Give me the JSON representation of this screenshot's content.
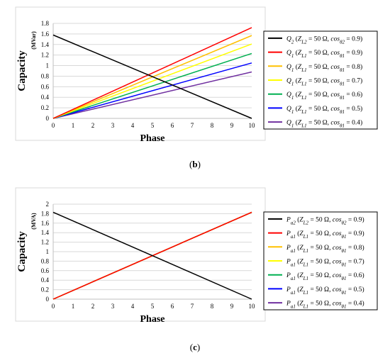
{
  "charts": [
    {
      "type": "line",
      "ylabel": "Capacity",
      "yunit": "(MVar)",
      "xlabel": "Phase",
      "xticks": [
        "0",
        "1",
        "2",
        "3",
        "4",
        "5",
        "6",
        "7",
        "8",
        "9",
        "10"
      ],
      "yticks": [
        "0",
        "0.2",
        "0.4",
        "0.6",
        "0.8",
        "1",
        "1.2",
        "1.4",
        "1.6",
        "1.8"
      ],
      "xlim": [
        0,
        10
      ],
      "ylim": [
        0,
        1.8
      ],
      "series": [
        {
          "name": "Q2 (ZL2 = 50 Ω, cosθ2 = 0.9)",
          "sym": "Q",
          "sub": "2",
          "zsub": "L2",
          "csub": "θ2",
          "val": "0.9",
          "color": "#000000",
          "values": [
            1.58,
            0
          ]
        },
        {
          "name": "Q1 (ZL1 = 50 Ω, cosθ1 = 0.9)",
          "sym": "Q",
          "sub": "1",
          "zsub": "L1",
          "csub": "θ1",
          "val": "0.9",
          "color": "#ff0000",
          "values": [
            0,
            1.72
          ]
        },
        {
          "name": "Q1 (ZL1 = 50 Ω, cosθ1 = 0.8)",
          "sym": "Q",
          "sub": "1",
          "zsub": "L1",
          "csub": "θ1",
          "val": "0.8",
          "color": "#ffc000",
          "values": [
            0,
            1.57
          ]
        },
        {
          "name": "Q1 (ZL1 = 50 Ω, cosθ1 = 0.7)",
          "sym": "Q",
          "sub": "1",
          "zsub": "L1",
          "csub": "θ1",
          "val": "0.7",
          "color": "#ffff00",
          "values": [
            0,
            1.41
          ]
        },
        {
          "name": "Q1 (ZL1 = 50 Ω, cosθ1 = 0.6)",
          "sym": "Q",
          "sub": "1",
          "zsub": "L1",
          "csub": "θ1",
          "val": "0.6",
          "color": "#00b050",
          "values": [
            0,
            1.23
          ]
        },
        {
          "name": "Q1 (ZL1 = 50 Ω, cosθ1 = 0.5)",
          "sym": "Q",
          "sub": "1",
          "zsub": "L1",
          "csub": "θ1",
          "val": "0.5",
          "color": "#0000ff",
          "values": [
            0,
            1.05
          ]
        },
        {
          "name": "Q1 (ZL1 = 50 Ω, cosθ1 = 0.4)",
          "sym": "Q",
          "sub": "1",
          "zsub": "L1",
          "csub": "θ1",
          "val": "0.4",
          "color": "#7030a0",
          "values": [
            0,
            0.88
          ]
        }
      ],
      "caption": "b"
    },
    {
      "type": "line",
      "ylabel": "Capacity",
      "yunit": "(MVA)",
      "xlabel": "Phase",
      "xticks": [
        "0",
        "1",
        "2",
        "3",
        "4",
        "5",
        "6",
        "7",
        "8",
        "9",
        "10"
      ],
      "yticks": [
        "0",
        "0.2",
        "0.4",
        "0.6",
        "0.8",
        "1",
        "1.2",
        "1.4",
        "1.6",
        "1.8",
        "2"
      ],
      "xlim": [
        0,
        10
      ],
      "ylim": [
        0,
        2
      ],
      "series": [
        {
          "name": "Pa2 (ZL2 = 50 Ω, cosθ2 = 0.9)",
          "sym": "P",
          "sub": "a2",
          "zsub": "L2",
          "csub": "θ2",
          "val": "0.9",
          "color": "#000000",
          "values": [
            1.83,
            0
          ]
        },
        {
          "name": "Pa1 (ZL1 = 50 Ω, cosθ1 = 0.9)",
          "sym": "P",
          "sub": "a1",
          "zsub": "L1",
          "csub": "θ1",
          "val": "0.9",
          "color": "#ff0000",
          "values": [
            0,
            1.83
          ]
        },
        {
          "name": "Pa1 (ZL1 = 50 Ω, cosθ1 = 0.8)",
          "sym": "P",
          "sub": "a1",
          "zsub": "L1",
          "csub": "θ1",
          "val": "0.8",
          "color": "#ffc000",
          "values": [
            0,
            1.83
          ]
        },
        {
          "name": "Pa1 (ZL1 = 50 Ω, cosθ1 = 0.7)",
          "sym": "P",
          "sub": "a1",
          "zsub": "L1",
          "csub": "θ1",
          "val": "0.7",
          "color": "#ffff00",
          "values": [
            0,
            1.83
          ]
        },
        {
          "name": "Pa1 (ZL1 = 50 Ω, cosθ1 = 0.6)",
          "sym": "P",
          "sub": "a1",
          "zsub": "L1",
          "csub": "θ1",
          "val": "0.6",
          "color": "#00b050",
          "values": [
            0,
            1.83
          ]
        },
        {
          "name": "Pa1 (ZL1 = 50 Ω, cosθ1 = 0.5)",
          "sym": "P",
          "sub": "a1",
          "zsub": "L1",
          "csub": "θ1",
          "val": "0.5",
          "color": "#0000ff",
          "values": [
            0,
            1.83
          ]
        },
        {
          "name": "Pa1 (ZL1 = 50 Ω, cosθ1 = 0.4)",
          "sym": "P",
          "sub": "a1",
          "zsub": "L1",
          "csub": "θ1",
          "val": "0.4",
          "color": "#7030a0",
          "values": [
            0,
            1.83
          ]
        }
      ],
      "caption": "c"
    }
  ],
  "chart_data": [
    {
      "type": "line",
      "xlabel": "Phase",
      "ylabel": "Capacity (MVar)",
      "xlim": [
        0,
        10
      ],
      "ylim": [
        0,
        1.8
      ],
      "grid": true,
      "legend": "right",
      "x": [
        0,
        10
      ],
      "series": [
        {
          "name": "Q2 (ZL2 = 50 Ω, cosθ2 = 0.9)",
          "values": [
            1.58,
            0
          ]
        },
        {
          "name": "Q1 (ZL1 = 50 Ω, cosθ1 = 0.9)",
          "values": [
            0,
            1.72
          ]
        },
        {
          "name": "Q1 (ZL1 = 50 Ω, cosθ1 = 0.8)",
          "values": [
            0,
            1.57
          ]
        },
        {
          "name": "Q1 (ZL1 = 50 Ω, cosθ1 = 0.7)",
          "values": [
            0,
            1.41
          ]
        },
        {
          "name": "Q1 (ZL1 = 50 Ω, cosθ1 = 0.6)",
          "values": [
            0,
            1.23
          ]
        },
        {
          "name": "Q1 (ZL1 = 50 Ω, cosθ1 = 0.5)",
          "values": [
            0,
            1.05
          ]
        },
        {
          "name": "Q1 (ZL1 = 50 Ω, cosθ1 = 0.4)",
          "values": [
            0,
            0.88
          ]
        }
      ]
    },
    {
      "type": "line",
      "xlabel": "Phase",
      "ylabel": "Capacity (MVA)",
      "xlim": [
        0,
        10
      ],
      "ylim": [
        0,
        2
      ],
      "grid": true,
      "legend": "right",
      "x": [
        0,
        10
      ],
      "series": [
        {
          "name": "Pa2 (ZL2 = 50 Ω, cosθ2 = 0.9)",
          "values": [
            1.83,
            0
          ]
        },
        {
          "name": "Pa1 (ZL1 = 50 Ω, cosθ1 = 0.9)",
          "values": [
            0,
            1.83
          ]
        },
        {
          "name": "Pa1 (ZL1 = 50 Ω, cosθ1 = 0.8)",
          "values": [
            0,
            1.83
          ]
        },
        {
          "name": "Pa1 (ZL1 = 50 Ω, cosθ1 = 0.7)",
          "values": [
            0,
            1.83
          ]
        },
        {
          "name": "Pa1 (ZL1 = 50 Ω, cosθ1 = 0.6)",
          "values": [
            0,
            1.83
          ]
        },
        {
          "name": "Pa1 (ZL1 = 50 Ω, cosθ1 = 0.5)",
          "values": [
            0,
            1.83
          ]
        },
        {
          "name": "Pa1 (ZL1 = 50 Ω, cosθ1 = 0.4)",
          "values": [
            0,
            1.83
          ]
        }
      ]
    }
  ]
}
